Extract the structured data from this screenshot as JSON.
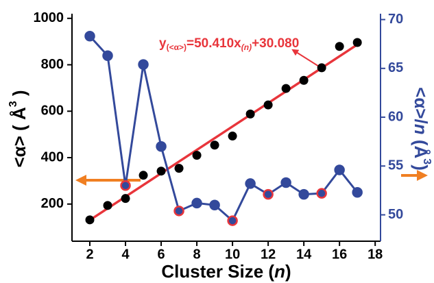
{
  "chart_data": {
    "type": "line",
    "x": [
      2,
      3,
      4,
      5,
      6,
      7,
      8,
      9,
      10,
      11,
      12,
      13,
      14,
      15,
      16,
      17
    ],
    "xlim": [
      1,
      18.3
    ],
    "xticks": [
      2,
      4,
      6,
      8,
      10,
      12,
      14,
      16,
      18
    ],
    "ylim": [
      40,
      1020
    ],
    "yticks": [
      200,
      400,
      600,
      800,
      1000
    ],
    "y2lim": [
      47.3,
      70.6
    ],
    "y2ticks": [
      50,
      55,
      60,
      65,
      70
    ],
    "xlabel": [
      "Cluster Size (",
      "n",
      ")"
    ],
    "ylabel": [
      "<α> ( Å",
      "3",
      " )"
    ],
    "y2label": [
      "<α>/",
      "n",
      " (Å",
      "3",
      ")"
    ],
    "axis_color": "#000000",
    "y2_color": "#33499b",
    "series": [
      {
        "color": "#000000",
        "style": "markers",
        "values": [
          132,
          194,
          224,
          324,
          342,
          354,
          410,
          454,
          493,
          588,
          627,
          698,
          733,
          787,
          879,
          896
        ]
      },
      {
        "color": "#33499b",
        "style": "line+markers",
        "axis": "y2",
        "values": [
          68.3,
          66.3,
          53.0,
          65.4,
          57.0,
          50.4,
          51.2,
          51.0,
          49.4,
          53.2,
          52.1,
          53.3,
          52.1,
          52.2,
          54.6,
          52.3
        ],
        "edge_colors": [
          "#33499b",
          "#33499b",
          "#e8353b",
          "#33499b",
          "#33499b",
          "#e8353b",
          "#33499b",
          "#33499b",
          "#e8353b",
          "#33499b",
          "#e8353b",
          "#33499b",
          "#33499b",
          "#e8353b",
          "#33499b",
          "#33499b"
        ]
      }
    ],
    "fit": {
      "slope": 50.41,
      "intercept": 30.08,
      "x_range": [
        2,
        17
      ],
      "color": "#e8353b"
    },
    "annotation": [
      "y",
      "(<α>)",
      "=50.410x",
      "(n)",
      "+30.080"
    ]
  }
}
